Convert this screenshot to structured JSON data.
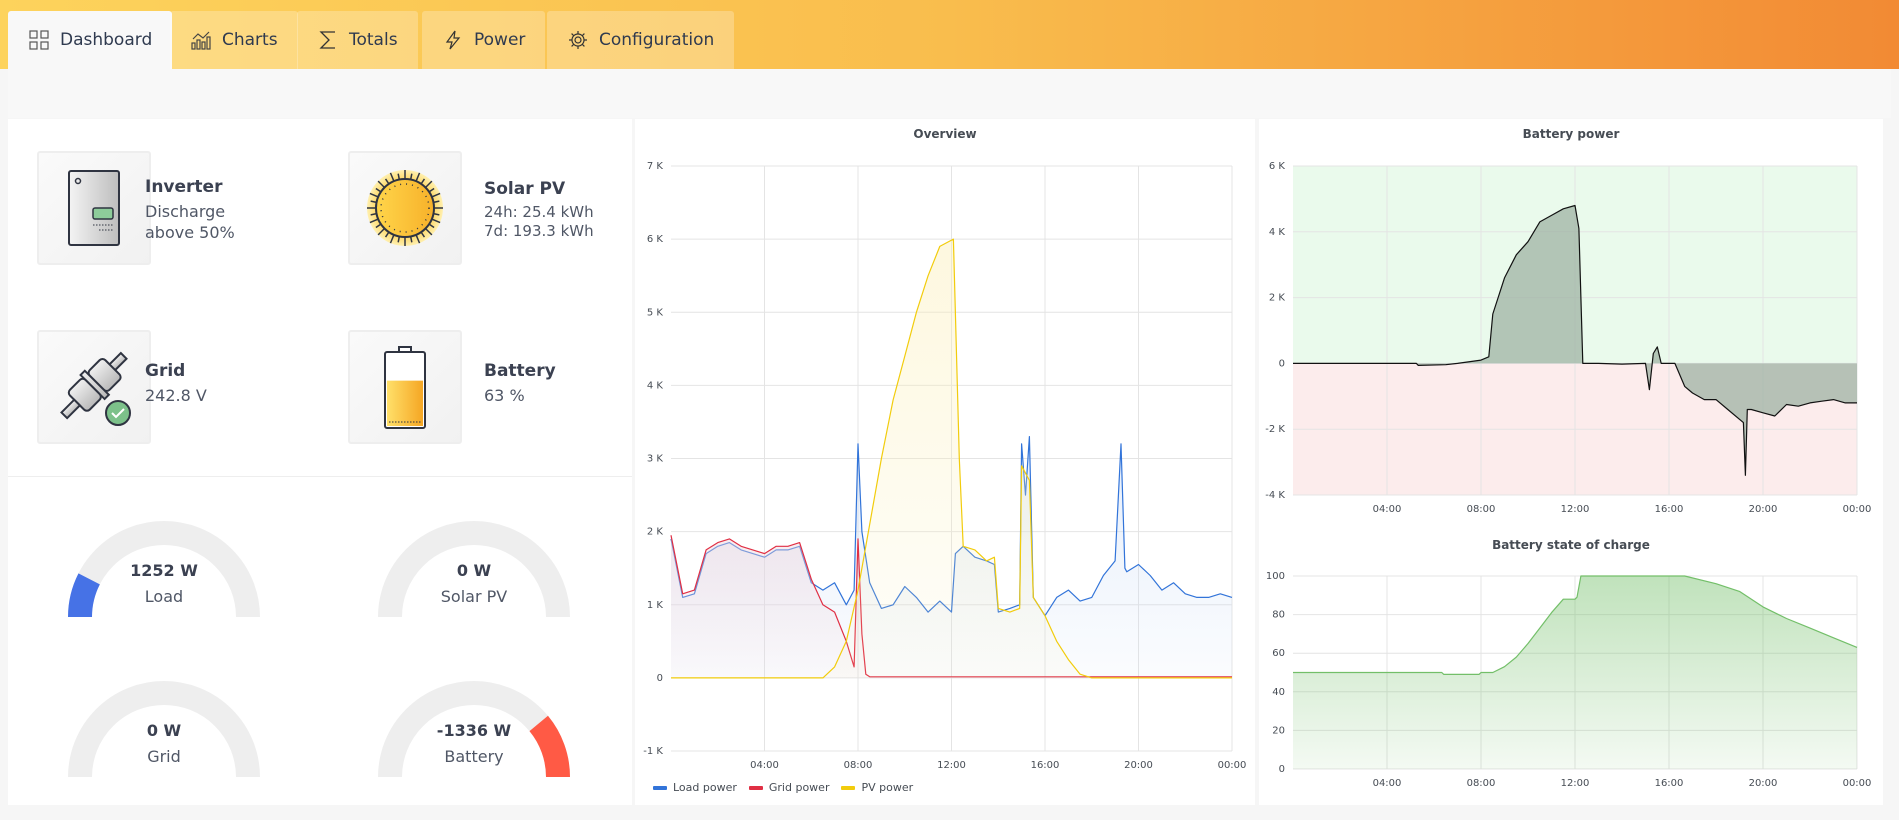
{
  "nav": {
    "tabs": [
      {
        "label": "Dashboard",
        "icon": "dashboard-grid-icon",
        "active": true
      },
      {
        "label": "Charts",
        "icon": "chart-icon",
        "active": false
      },
      {
        "label": "Totals",
        "icon": "sigma-icon",
        "active": false
      },
      {
        "label": "Power",
        "icon": "lightning-icon",
        "active": false
      },
      {
        "label": "Configuration",
        "icon": "gear-icon",
        "active": false
      }
    ]
  },
  "status": {
    "inverter": {
      "title": "Inverter",
      "line1": "Discharge",
      "line2": "above 50%"
    },
    "solar": {
      "title": "Solar PV",
      "line1": "24h: 25.4 kWh",
      "line2": "7d: 193.3 kWh"
    },
    "grid": {
      "title": "Grid",
      "line1": "242.8 V"
    },
    "battery": {
      "title": "Battery",
      "line1": "63 %",
      "level_percent": 63
    }
  },
  "gauges": [
    {
      "value": "1252 W",
      "label": "Load",
      "fill_fraction": 0.15,
      "fill_from": "left",
      "color": "#4672e6"
    },
    {
      "value": "0 W",
      "label": "Solar PV",
      "fill_fraction": 0,
      "fill_from": "left",
      "color": "#4672e6"
    },
    {
      "value": "0 W",
      "label": "Grid",
      "fill_fraction": 0,
      "fill_from": "left",
      "color": "#4672e6"
    },
    {
      "value": "-1336 W",
      "label": "Battery",
      "fill_fraction": 0.22,
      "fill_from": "right",
      "color": "#ff5a45"
    }
  ],
  "chart_data": [
    {
      "id": "overview",
      "type": "area",
      "title": "Overview",
      "ylim": [
        -1000,
        7000
      ],
      "yticks": [
        -1000,
        0,
        1000,
        2000,
        3000,
        4000,
        5000,
        6000,
        7000
      ],
      "ytick_labels": [
        "-1 K",
        "0",
        "1 K",
        "2 K",
        "3 K",
        "4 K",
        "5 K",
        "6 K",
        "7 K"
      ],
      "xlim": [
        "00:00",
        "24:00"
      ],
      "xtick_labels": [
        "04:00",
        "08:00",
        "12:00",
        "16:00",
        "20:00",
        "00:00"
      ],
      "grid": true,
      "legend": "bottom-left",
      "series": [
        {
          "name": "Load power",
          "color": "#3274d9",
          "fill": "#c9dbf5",
          "points": [
            [
              "00:00",
              1900
            ],
            [
              "00:30",
              1100
            ],
            [
              "01:00",
              1150
            ],
            [
              "01:30",
              1700
            ],
            [
              "02:00",
              1800
            ],
            [
              "02:30",
              1850
            ],
            [
              "03:00",
              1750
            ],
            [
              "03:30",
              1700
            ],
            [
              "04:00",
              1650
            ],
            [
              "04:30",
              1750
            ],
            [
              "05:00",
              1750
            ],
            [
              "05:30",
              1800
            ],
            [
              "06:00",
              1300
            ],
            [
              "06:30",
              1200
            ],
            [
              "07:00",
              1300
            ],
            [
              "07:30",
              1000
            ],
            [
              "07:50",
              1200
            ],
            [
              "08:00",
              3200
            ],
            [
              "08:10",
              2000
            ],
            [
              "08:30",
              1300
            ],
            [
              "09:00",
              950
            ],
            [
              "09:30",
              1000
            ],
            [
              "10:00",
              1250
            ],
            [
              "10:30",
              1100
            ],
            [
              "11:00",
              900
            ],
            [
              "11:30",
              1050
            ],
            [
              "12:00",
              900
            ],
            [
              "12:10",
              1700
            ],
            [
              "12:30",
              1800
            ],
            [
              "13:00",
              1650
            ],
            [
              "13:30",
              1600
            ],
            [
              "13:50",
              1550
            ],
            [
              "14:00",
              900
            ],
            [
              "14:30",
              950
            ],
            [
              "14:55",
              1000
            ],
            [
              "15:00",
              3200
            ],
            [
              "15:10",
              2500
            ],
            [
              "15:20",
              3300
            ],
            [
              "15:30",
              1100
            ],
            [
              "16:00",
              850
            ],
            [
              "16:30",
              1100
            ],
            [
              "17:00",
              1200
            ],
            [
              "17:30",
              1050
            ],
            [
              "18:00",
              1100
            ],
            [
              "18:30",
              1400
            ],
            [
              "19:00",
              1600
            ],
            [
              "19:15",
              3200
            ],
            [
              "19:25",
              1500
            ],
            [
              "19:30",
              1450
            ],
            [
              "20:00",
              1550
            ],
            [
              "20:30",
              1400
            ],
            [
              "21:00",
              1200
            ],
            [
              "21:30",
              1300
            ],
            [
              "22:00",
              1150
            ],
            [
              "22:30",
              1100
            ],
            [
              "23:00",
              1100
            ],
            [
              "23:30",
              1150
            ],
            [
              "24:00",
              1100
            ]
          ]
        },
        {
          "name": "Grid power",
          "color": "#e02f44",
          "fill": "#eed4db",
          "points": [
            [
              "00:00",
              1950
            ],
            [
              "00:30",
              1150
            ],
            [
              "01:00",
              1200
            ],
            [
              "01:30",
              1750
            ],
            [
              "02:00",
              1850
            ],
            [
              "02:30",
              1900
            ],
            [
              "03:00",
              1800
            ],
            [
              "03:30",
              1750
            ],
            [
              "04:00",
              1700
            ],
            [
              "04:30",
              1800
            ],
            [
              "05:00",
              1800
            ],
            [
              "05:30",
              1850
            ],
            [
              "06:00",
              1350
            ],
            [
              "06:30",
              1000
            ],
            [
              "07:00",
              900
            ],
            [
              "07:30",
              500
            ],
            [
              "07:50",
              150
            ],
            [
              "08:00",
              1900
            ],
            [
              "08:10",
              600
            ],
            [
              "08:20",
              50
            ],
            [
              "08:30",
              15
            ],
            [
              "12:00",
              15
            ],
            [
              "16:00",
              15
            ],
            [
              "20:00",
              15
            ],
            [
              "24:00",
              15
            ]
          ]
        },
        {
          "name": "PV power",
          "color": "#f2cc0c",
          "fill": "#fbefb8",
          "points": [
            [
              "00:00",
              0
            ],
            [
              "06:30",
              0
            ],
            [
              "07:00",
              150
            ],
            [
              "07:30",
              500
            ],
            [
              "08:00",
              1200
            ],
            [
              "08:30",
              2100
            ],
            [
              "09:00",
              3000
            ],
            [
              "09:30",
              3800
            ],
            [
              "10:00",
              4400
            ],
            [
              "10:30",
              5000
            ],
            [
              "11:00",
              5500
            ],
            [
              "11:30",
              5900
            ],
            [
              "12:05",
              6000
            ],
            [
              "12:20",
              3000
            ],
            [
              "12:30",
              1800
            ],
            [
              "13:00",
              1750
            ],
            [
              "13:30",
              1600
            ],
            [
              "13:50",
              1650
            ],
            [
              "14:00",
              950
            ],
            [
              "14:30",
              900
            ],
            [
              "14:55",
              950
            ],
            [
              "15:00",
              2900
            ],
            [
              "15:20",
              2700
            ],
            [
              "15:30",
              1100
            ],
            [
              "16:00",
              850
            ],
            [
              "16:30",
              500
            ],
            [
              "17:00",
              250
            ],
            [
              "17:30",
              50
            ],
            [
              "18:00",
              0
            ],
            [
              "24:00",
              0
            ]
          ]
        }
      ]
    },
    {
      "id": "battery-power",
      "type": "area",
      "title": "Battery power",
      "ylim": [
        -4000,
        6000
      ],
      "yticks": [
        -4000,
        -2000,
        0,
        2000,
        4000,
        6000
      ],
      "ytick_labels": [
        "-4 K",
        "-2 K",
        "0",
        "2 K",
        "4 K",
        "6 K"
      ],
      "xlim": [
        "00:00",
        "24:00"
      ],
      "xtick_labels": [
        "04:00",
        "08:00",
        "12:00",
        "16:00",
        "20:00",
        "00:00"
      ],
      "grid": true,
      "background_positive": "#eafaec",
      "background_negative": "#fcecec",
      "series": [
        {
          "color": "#111111",
          "fill": "#9fb3a4",
          "points": [
            [
              "00:00",
              0
            ],
            [
              "05:15",
              0
            ],
            [
              "05:20",
              -60
            ],
            [
              "06:30",
              -40
            ],
            [
              "07:00",
              0
            ],
            [
              "08:00",
              100
            ],
            [
              "08:20",
              200
            ],
            [
              "08:30",
              1500
            ],
            [
              "09:00",
              2600
            ],
            [
              "09:30",
              3300
            ],
            [
              "10:00",
              3700
            ],
            [
              "10:30",
              4300
            ],
            [
              "11:00",
              4500
            ],
            [
              "11:30",
              4700
            ],
            [
              "12:00",
              4800
            ],
            [
              "12:10",
              4100
            ],
            [
              "12:20",
              0
            ],
            [
              "13:00",
              0
            ],
            [
              "14:00",
              -20
            ],
            [
              "15:00",
              0
            ],
            [
              "15:10",
              -800
            ],
            [
              "15:20",
              300
            ],
            [
              "15:30",
              500
            ],
            [
              "15:40",
              0
            ],
            [
              "16:15",
              0
            ],
            [
              "16:40",
              -700
            ],
            [
              "17:00",
              -900
            ],
            [
              "17:30",
              -1100
            ],
            [
              "18:00",
              -1100
            ],
            [
              "18:30",
              -1400
            ],
            [
              "19:00",
              -1700
            ],
            [
              "19:10",
              -1800
            ],
            [
              "19:15",
              -3400
            ],
            [
              "19:20",
              -1400
            ],
            [
              "19:30",
              -1400
            ],
            [
              "20:00",
              -1500
            ],
            [
              "20:30",
              -1600
            ],
            [
              "21:00",
              -1250
            ],
            [
              "21:30",
              -1300
            ],
            [
              "22:00",
              -1200
            ],
            [
              "22:30",
              -1150
            ],
            [
              "23:00",
              -1100
            ],
            [
              "23:30",
              -1200
            ],
            [
              "24:00",
              -1200
            ]
          ]
        }
      ]
    },
    {
      "id": "battery-soc",
      "type": "area",
      "title": "Battery state of charge",
      "ylim": [
        0,
        100
      ],
      "yticks": [
        0,
        20,
        40,
        60,
        80,
        100
      ],
      "ytick_labels": [
        "0",
        "20",
        "40",
        "60",
        "80",
        "100"
      ],
      "xlim": [
        "00:00",
        "24:00"
      ],
      "xtick_labels": [
        "04:00",
        "08:00",
        "12:00",
        "16:00",
        "20:00",
        "00:00"
      ],
      "grid": true,
      "series": [
        {
          "color": "#73bf69",
          "fill": "#73bf69",
          "points": [
            [
              "00:00",
              50
            ],
            [
              "06:20",
              50
            ],
            [
              "06:25",
              49
            ],
            [
              "07:55",
              49
            ],
            [
              "08:00",
              50
            ],
            [
              "08:30",
              50
            ],
            [
              "09:00",
              53
            ],
            [
              "09:30",
              58
            ],
            [
              "10:00",
              65
            ],
            [
              "10:30",
              73
            ],
            [
              "11:00",
              81
            ],
            [
              "11:30",
              88
            ],
            [
              "12:00",
              88
            ],
            [
              "12:05",
              89
            ],
            [
              "12:15",
              100
            ],
            [
              "16:40",
              100
            ],
            [
              "18:00",
              96
            ],
            [
              "19:00",
              92
            ],
            [
              "20:00",
              84
            ],
            [
              "21:00",
              78
            ],
            [
              "22:00",
              73
            ],
            [
              "23:00",
              68
            ],
            [
              "24:00",
              63
            ]
          ]
        }
      ]
    }
  ]
}
